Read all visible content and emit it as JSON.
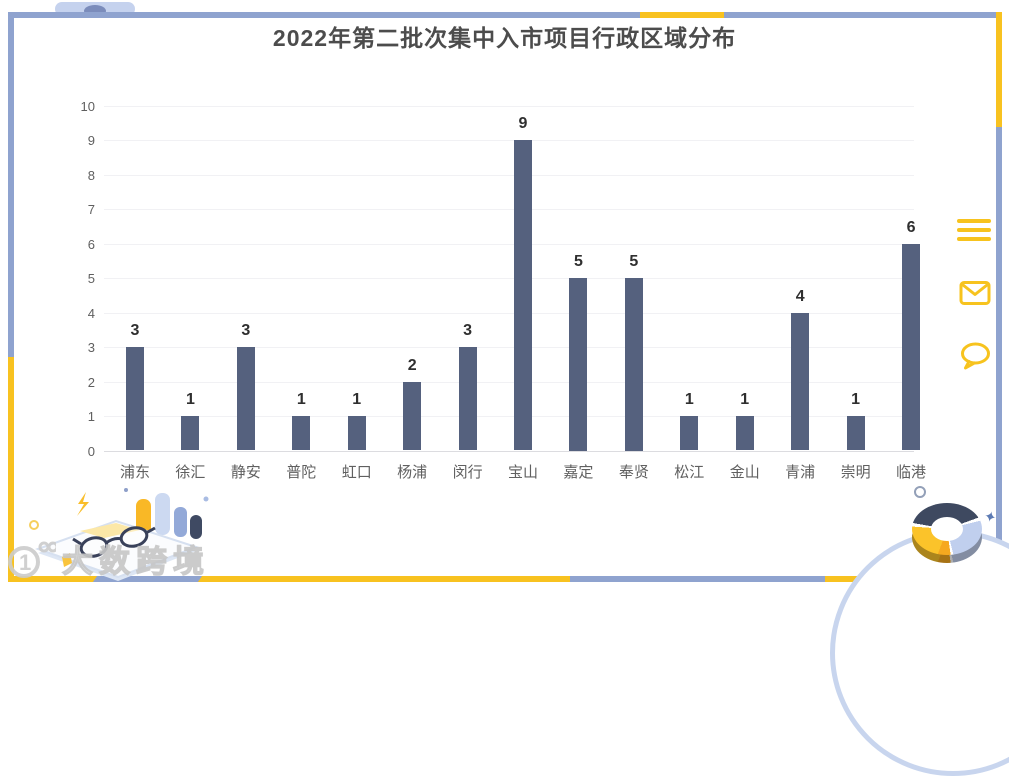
{
  "page": {
    "title": "2022年第二批次集中入市项目行政区域分布"
  },
  "chart_data": {
    "type": "bar",
    "title": "2022年第二批次集中入市项目行政区域分布",
    "categories": [
      "浦东",
      "徐汇",
      "静安",
      "普陀",
      "虹口",
      "杨浦",
      "闵行",
      "宝山",
      "嘉定",
      "奉贤",
      "松江",
      "金山",
      "青浦",
      "崇明",
      "临港"
    ],
    "values": [
      3,
      1,
      3,
      1,
      1,
      2,
      3,
      9,
      5,
      5,
      1,
      1,
      4,
      1,
      6
    ],
    "xlabel": "",
    "ylabel": "",
    "ylim": [
      0,
      10
    ],
    "yticks": [
      0,
      1,
      2,
      3,
      4,
      5,
      6,
      7,
      8,
      9,
      10
    ],
    "grid": true,
    "legend_position": "none",
    "bar_color": "#55617e",
    "show_value_labels": true
  },
  "watermark": {
    "logo": "1⁰⁰",
    "text": "大数跨境"
  },
  "icons": {
    "menu": "menu",
    "mail": "mail",
    "chat": "chat"
  },
  "colors": {
    "frame_blue": "#8fa3cf",
    "accent_yellow": "#f8c220",
    "icon_yellow": "#f7c31e",
    "bar": "#55617e",
    "title_text": "#4c4c4c",
    "axis_text": "#5f5f5f",
    "grid_line": "#f1f1f4",
    "donut_navy": "#3e4960",
    "donut_blue": "#c0cfee",
    "donut_orange": "#f6a81f"
  }
}
